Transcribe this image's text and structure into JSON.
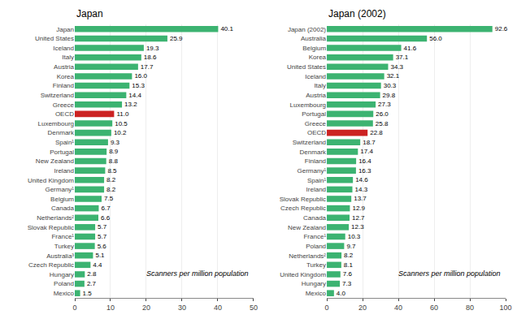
{
  "chart_data": [
    {
      "type": "bar",
      "orientation": "horizontal",
      "title": "Japan",
      "categories": [
        "Japan",
        "United States",
        "Iceland",
        "Italy",
        "Austria",
        "Korea",
        "Finland",
        "Switzerland",
        "Greece",
        "OECD",
        "Luxembourg",
        "Denmark",
        "Spain¹",
        "Portugal",
        "New Zealand",
        "Ireland",
        "United Kingdom",
        "Germany¹",
        "Belgium",
        "Canada",
        "Netherlands²",
        "Slovak Republic",
        "France¹",
        "Turkey",
        "Australia³",
        "Czech Republic",
        "Hungary",
        "Poland",
        "Mexico"
      ],
      "values": [
        40.1,
        25.9,
        19.3,
        18.6,
        17.7,
        16.0,
        15.3,
        14.4,
        13.2,
        11.0,
        10.5,
        10.2,
        9.3,
        8.9,
        8.8,
        8.5,
        8.2,
        8.2,
        7.5,
        6.7,
        6.6,
        5.7,
        5.7,
        5.6,
        5.1,
        4.4,
        2.8,
        2.7,
        1.5
      ],
      "value_labels": [
        "40.1",
        "25.9",
        "19.3",
        "18.6",
        "17.7",
        "16.0",
        "15.3",
        "14.4",
        "13.2",
        "11.0",
        "10.5",
        "10.2",
        "9.3",
        "8.9",
        "8.8",
        "8.5",
        "8.2",
        "8.2",
        "7.5",
        "6.7",
        "6.6",
        "5.7",
        "5.7",
        "5.6",
        "5.1",
        "4.4",
        "2.8",
        "2.7",
        "1.5"
      ],
      "colors": [
        "#3cb371",
        "#3cb371",
        "#3cb371",
        "#3cb371",
        "#3cb371",
        "#3cb371",
        "#3cb371",
        "#3cb371",
        "#3cb371",
        "#cc2222",
        "#3cb371",
        "#3cb371",
        "#3cb371",
        "#3cb371",
        "#3cb371",
        "#3cb371",
        "#3cb371",
        "#3cb371",
        "#3cb371",
        "#3cb371",
        "#3cb371",
        "#3cb371",
        "#3cb371",
        "#3cb371",
        "#3cb371",
        "#3cb371",
        "#3cb371",
        "#3cb371",
        "#3cb371"
      ],
      "xlim": [
        0,
        50
      ],
      "xticks": [
        0,
        10,
        20,
        30,
        40,
        50
      ],
      "xlabel": "Scanners per million population",
      "grid": true,
      "data_labels": true
    },
    {
      "type": "bar",
      "orientation": "horizontal",
      "title": "Japan (2002)",
      "categories": [
        "Japan (2002)",
        "Australia",
        "Belgium",
        "Korea",
        "United States",
        "Iceland",
        "Italy",
        "Austria",
        "Luxembourg",
        "Portugal",
        "Greece",
        "OECD",
        "Switzerland",
        "Denmark",
        "Finland",
        "Germany¹",
        "Spain¹",
        "Ireland",
        "Slovak Republic",
        "Czech Republic",
        "Canada",
        "New Zealand",
        "France¹",
        "Poland",
        "Netherlands²",
        "Turkey",
        "United Kingdom",
        "Hungary",
        "Mexico"
      ],
      "values": [
        92.6,
        56.0,
        41.6,
        37.1,
        34.3,
        32.1,
        30.3,
        29.8,
        27.3,
        26.0,
        25.8,
        22.8,
        18.7,
        17.4,
        16.4,
        16.3,
        14.6,
        14.3,
        13.7,
        12.9,
        12.7,
        12.3,
        10.3,
        9.7,
        8.2,
        8.1,
        7.6,
        7.3,
        4.0
      ],
      "value_labels": [
        "92.6",
        "56.0",
        "41.6",
        "37.1",
        "34.3",
        "32.1",
        "30.3",
        "29.8",
        "27.3",
        "26.0",
        "25.8",
        "22.8",
        "18.7",
        "17.4",
        "16.4",
        "16.3",
        "14.6",
        "14.3",
        "13.7",
        "12.9",
        "12.7",
        "12.3",
        "10.3",
        "9.7",
        "8.2",
        "8.1",
        "7.6",
        "7.3",
        "4.0"
      ],
      "colors": [
        "#3cb371",
        "#3cb371",
        "#3cb371",
        "#3cb371",
        "#3cb371",
        "#3cb371",
        "#3cb371",
        "#3cb371",
        "#3cb371",
        "#3cb371",
        "#3cb371",
        "#cc2222",
        "#3cb371",
        "#3cb371",
        "#3cb371",
        "#3cb371",
        "#3cb371",
        "#3cb371",
        "#3cb371",
        "#3cb371",
        "#3cb371",
        "#3cb371",
        "#3cb371",
        "#3cb371",
        "#3cb371",
        "#3cb371",
        "#3cb371",
        "#3cb371",
        "#3cb371"
      ],
      "xlim": [
        0,
        100
      ],
      "xticks": [
        0,
        20,
        40,
        60,
        80,
        100
      ],
      "xlabel": "Scanners per million population",
      "grid": true,
      "data_labels": true
    }
  ]
}
